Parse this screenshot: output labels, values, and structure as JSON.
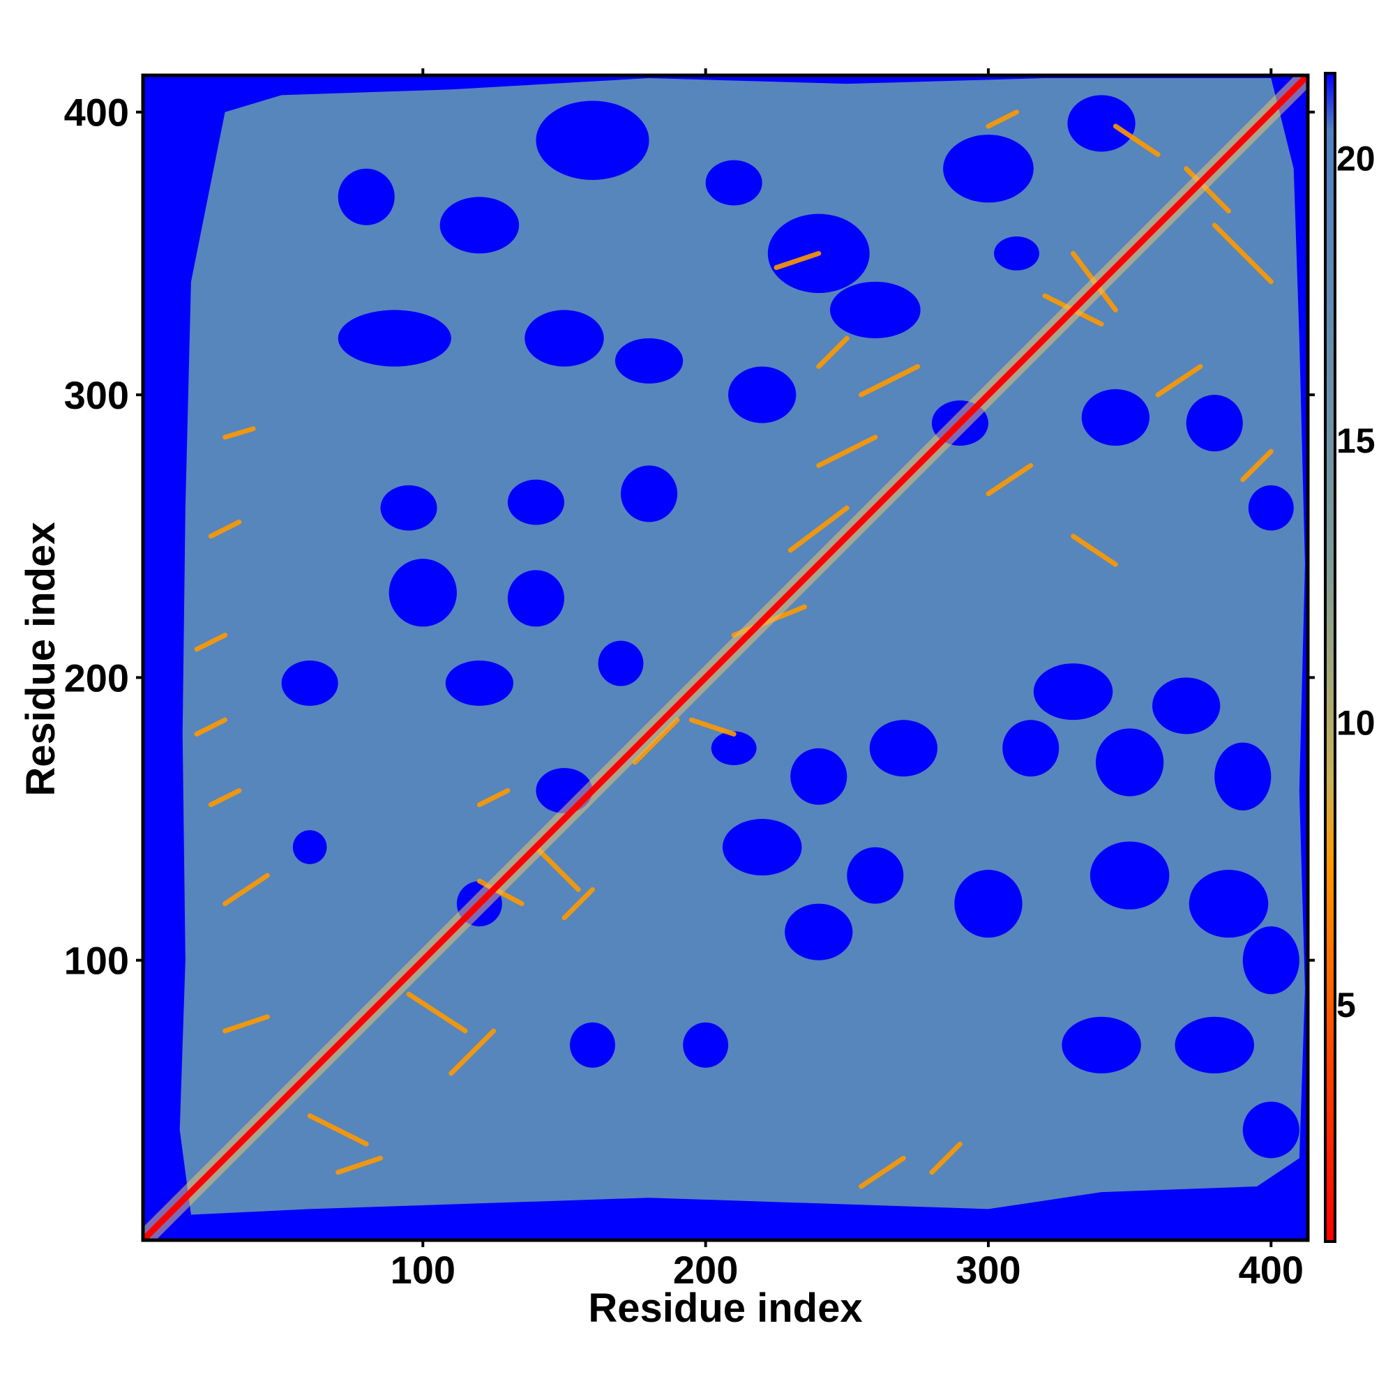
{
  "chart_data": {
    "type": "heatmap",
    "title": "",
    "xlabel": "Residue index",
    "ylabel": "Residue index",
    "xlim": [
      1,
      413
    ],
    "ylim": [
      1,
      413
    ],
    "x_ticks": [
      100,
      200,
      300,
      400
    ],
    "y_ticks": [
      100,
      200,
      300,
      400
    ],
    "colorbar": {
      "min": 0.8,
      "max": 21.5,
      "ticks": [
        5,
        10,
        15,
        20
      ],
      "stops": [
        {
          "value": 0.8,
          "color": "#ff0000"
        },
        {
          "value": 4,
          "color": "#ff4400"
        },
        {
          "value": 7.5,
          "color": "#ff9900"
        },
        {
          "value": 9,
          "color": "#c8b25a"
        },
        {
          "value": 13,
          "color": "#7a9a9a"
        },
        {
          "value": 19,
          "color": "#5686bb"
        },
        {
          "value": 20.5,
          "color": "#5080c0"
        },
        {
          "value": 21.5,
          "color": "#0000ff"
        }
      ]
    },
    "grid": false,
    "legend": "colorbar-right"
  },
  "colors": {
    "far": "#0000ff",
    "mid": "#5686bb",
    "near": "#ff0000",
    "contact": "#ff9900"
  }
}
